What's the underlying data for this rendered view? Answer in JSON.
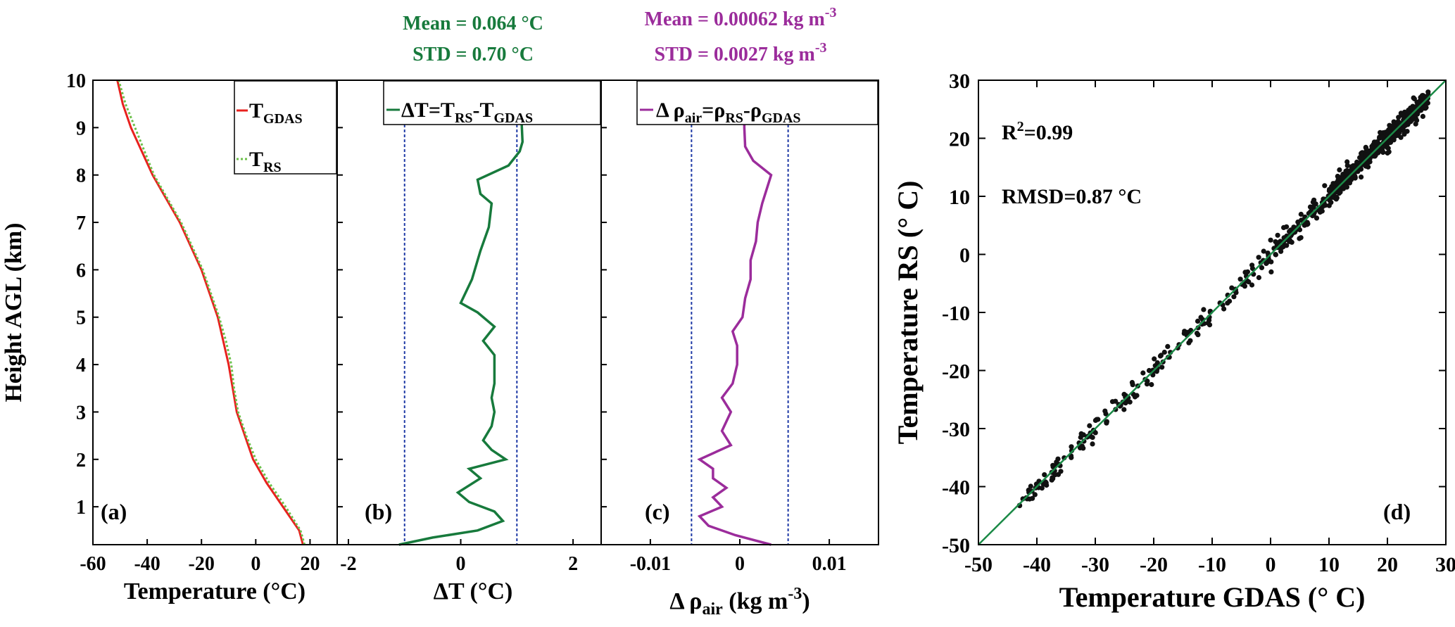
{
  "colors": {
    "t_gdas": "#e8211e",
    "t_rs": "#6cc04a",
    "delta_t": "#177a3c",
    "delta_rho": "#9b2c9b",
    "std_lines": "#1f3aa6",
    "scatter_points": "#111111",
    "fit_line": "#1b8a47"
  },
  "chart_data": [
    {
      "panel": "(a)",
      "type": "line",
      "xlabel": "Temperature (°C)",
      "ylabel": "Height AGL (km)",
      "xlim": [
        -60,
        30
      ],
      "ylim": [
        0.2,
        10
      ],
      "xticks": [
        "-60",
        "-40",
        "-20",
        "0",
        "20"
      ],
      "yticks": [
        "1",
        "2",
        "3",
        "4",
        "5",
        "6",
        "7",
        "8",
        "9",
        "10"
      ],
      "legend": {
        "position": "top-right",
        "entries": [
          {
            "base": "T",
            "sub": "GDAS",
            "style": "solid"
          },
          {
            "base": "T",
            "sub": "RS",
            "style": "dotted"
          }
        ]
      },
      "series": [
        {
          "name": "T_GDAS",
          "style": "solid",
          "points": [
            [
              17.4,
              0.2
            ],
            [
              16,
              0.5
            ],
            [
              10,
              1
            ],
            [
              4,
              1.5
            ],
            [
              -1,
              2
            ],
            [
              -4,
              2.5
            ],
            [
              -7,
              3
            ],
            [
              -8.5,
              3.5
            ],
            [
              -10,
              4
            ],
            [
              -12,
              4.5
            ],
            [
              -14,
              5
            ],
            [
              -17,
              5.5
            ],
            [
              -20,
              6
            ],
            [
              -24,
              6.5
            ],
            [
              -28,
              7
            ],
            [
              -33,
              7.5
            ],
            [
              -38,
              8
            ],
            [
              -42,
              8.5
            ],
            [
              -46,
              9
            ],
            [
              -49,
              9.5
            ],
            [
              -51,
              10
            ]
          ]
        },
        {
          "name": "T_RS",
          "style": "dotted",
          "points": [
            [
              18,
              0.2
            ],
            [
              16.5,
              0.5
            ],
            [
              11,
              1
            ],
            [
              5,
              1.5
            ],
            [
              0,
              2
            ],
            [
              -3.5,
              2.5
            ],
            [
              -6.5,
              3
            ],
            [
              -8,
              3.5
            ],
            [
              -9,
              4
            ],
            [
              -11,
              4.5
            ],
            [
              -13.5,
              5
            ],
            [
              -16.5,
              5.5
            ],
            [
              -19.5,
              6
            ],
            [
              -23.5,
              6.5
            ],
            [
              -27.5,
              7
            ],
            [
              -32.5,
              7.5
            ],
            [
              -37.5,
              8
            ],
            [
              -41,
              8.5
            ],
            [
              -44.5,
              9
            ],
            [
              -48,
              9.5
            ],
            [
              -50.5,
              10
            ]
          ]
        }
      ]
    },
    {
      "panel": "(b)",
      "type": "line",
      "xlabel": "ΔT (°C)",
      "xlim": [
        -2.2,
        2.5
      ],
      "ylim": [
        0.2,
        10
      ],
      "xticks": [
        "-2",
        "0",
        "2"
      ],
      "stats": {
        "mean": "Mean = 0.064 °C",
        "std": "STD = 0.70 °C"
      },
      "legend": {
        "position": "top-right",
        "text": "ΔT=T",
        "sub1": "RS",
        "mid": "-T",
        "sub2": "GDAS"
      },
      "std_lines": [
        -1,
        1
      ],
      "series": [
        {
          "name": "ΔT",
          "points": [
            [
              -1.1,
              0.2
            ],
            [
              -0.5,
              0.35
            ],
            [
              0.3,
              0.5
            ],
            [
              0.75,
              0.7
            ],
            [
              0.6,
              0.9
            ],
            [
              0.15,
              1.1
            ],
            [
              -0.05,
              1.3
            ],
            [
              0.35,
              1.6
            ],
            [
              0.15,
              1.8
            ],
            [
              0.8,
              2
            ],
            [
              0.55,
              2.2
            ],
            [
              0.4,
              2.4
            ],
            [
              0.55,
              2.7
            ],
            [
              0.6,
              3
            ],
            [
              0.55,
              3.3
            ],
            [
              0.6,
              3.6
            ],
            [
              0.6,
              4.2
            ],
            [
              0.4,
              4.5
            ],
            [
              0.6,
              4.8
            ],
            [
              0.3,
              5.1
            ],
            [
              0,
              5.3
            ],
            [
              0.2,
              5.8
            ],
            [
              0.35,
              6.4
            ],
            [
              0.5,
              6.9
            ],
            [
              0.55,
              7.4
            ],
            [
              0.35,
              7.6
            ],
            [
              0.3,
              7.9
            ],
            [
              0.85,
              8.2
            ],
            [
              1.05,
              8.5
            ],
            [
              1.1,
              8.7
            ],
            [
              1.05,
              10
            ]
          ]
        }
      ]
    },
    {
      "panel": "(c)",
      "type": "line",
      "xlabel": "Δ ρ",
      "xlabel_sub": "air",
      "xlabel_unit": " (kg m",
      "xlabel_sup": "-3",
      "xlim": [
        -0.0155,
        0.0155
      ],
      "ylim": [
        0.2,
        10
      ],
      "xticks": [
        "-0.01",
        "0",
        "0.01"
      ],
      "stats": {
        "mean": "Mean = 0.00062 kg m",
        "mean_sup": "-3",
        "std": "STD = 0.0027 kg m",
        "std_sup": "-3"
      },
      "legend": {
        "position": "top-right",
        "text": "Δ ρ",
        "sub1": "air",
        "mid": "=ρ",
        "sub2": "RS",
        "mid2": "-ρ",
        "sub3": "GDAS"
      },
      "std_lines": [
        -0.0054,
        0.0054
      ],
      "series": [
        {
          "name": "Δρ_air",
          "points": [
            [
              0.0035,
              0.2
            ],
            [
              -0.0005,
              0.4
            ],
            [
              -0.0035,
              0.6
            ],
            [
              -0.0045,
              0.8
            ],
            [
              -0.002,
              1
            ],
            [
              -0.003,
              1.2
            ],
            [
              -0.0015,
              1.4
            ],
            [
              -0.003,
              1.6
            ],
            [
              -0.003,
              1.8
            ],
            [
              -0.0045,
              2
            ],
            [
              -0.001,
              2.3
            ],
            [
              -0.002,
              2.6
            ],
            [
              -0.001,
              3
            ],
            [
              -0.002,
              3.3
            ],
            [
              -0.0008,
              3.6
            ],
            [
              -0.0003,
              4
            ],
            [
              -0.0003,
              4.4
            ],
            [
              -0.0008,
              4.7
            ],
            [
              0.0003,
              5
            ],
            [
              0.0006,
              5.4
            ],
            [
              0.0012,
              5.8
            ],
            [
              0.0012,
              6.2
            ],
            [
              0.0018,
              6.6
            ],
            [
              0.002,
              7
            ],
            [
              0.0025,
              7.4
            ],
            [
              0.0035,
              8
            ],
            [
              0.0015,
              8.3
            ],
            [
              0.0006,
              8.6
            ],
            [
              0.0005,
              9
            ],
            [
              0.0005,
              10
            ]
          ]
        }
      ]
    },
    {
      "panel": "(d)",
      "type": "scatter",
      "xlabel": "Temperature GDAS (° C)",
      "ylabel": "Temperature RS (° C)",
      "xlim": [
        -50,
        30
      ],
      "ylim": [
        -50,
        30
      ],
      "xticks": [
        "-50",
        "-40",
        "-30",
        "-20",
        "-10",
        "0",
        "10",
        "20",
        "30"
      ],
      "yticks": [
        "-50",
        "-40",
        "-30",
        "-20",
        "-10",
        "0",
        "10",
        "20",
        "30"
      ],
      "annotations": {
        "r2_base": "R",
        "r2_sup": "2",
        "r2_value": "=0.99",
        "rmsd": "RMSD=0.87 °C"
      },
      "fit_line": [
        [
          -50,
          -50
        ],
        [
          30,
          30
        ]
      ],
      "point_density": [
        {
          "range": [
            -43,
            -36
          ],
          "count": 40
        },
        {
          "range": [
            -36,
            -20
          ],
          "count": 60
        },
        {
          "range": [
            -20,
            0
          ],
          "count": 80
        },
        {
          "range": [
            0,
            10
          ],
          "count": 90
        },
        {
          "range": [
            10,
            27
          ],
          "count": 460
        }
      ],
      "noise_std": 0.9
    }
  ]
}
